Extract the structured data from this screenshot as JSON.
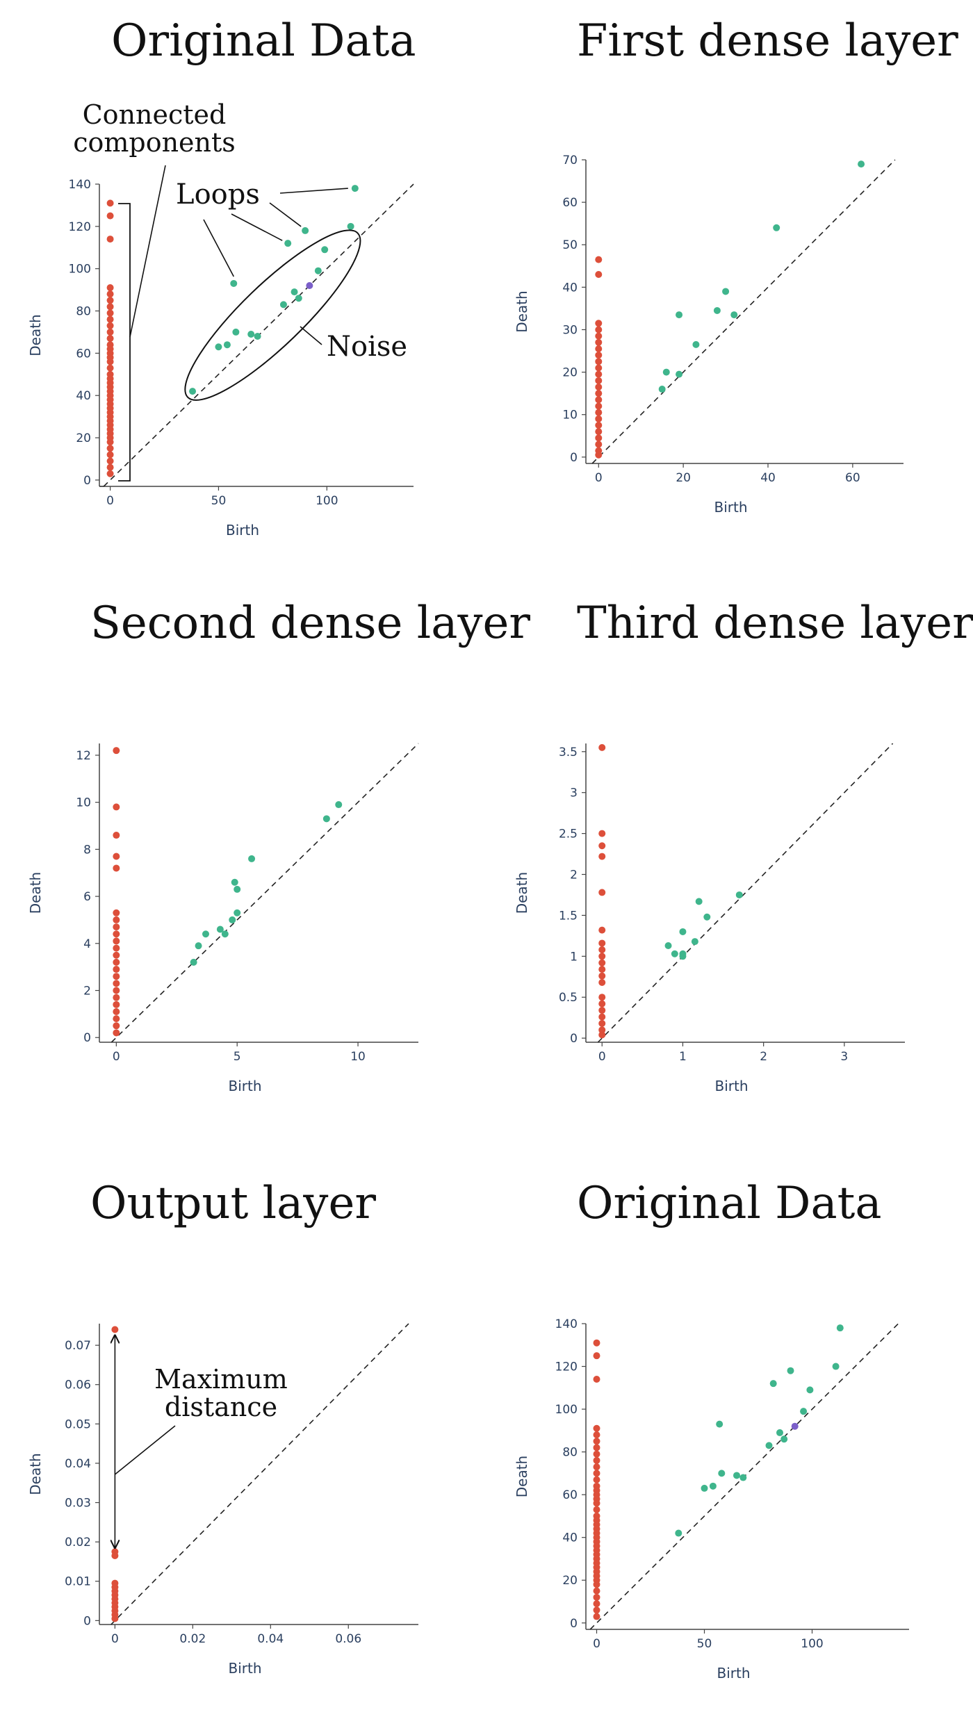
{
  "colors": {
    "h0": "#dd4f3a",
    "h1": "#3fb58c",
    "h2": "#7b5fc9",
    "axis": "#2a3f5f",
    "diag": "#222222"
  },
  "chart_data": [
    {
      "type": "scatter",
      "title": "Original Data",
      "xlabel": "Birth",
      "ylabel": "Death",
      "xlim": [
        -5,
        140
      ],
      "ylim": [
        -3,
        140
      ],
      "xticks": [
        0,
        50,
        100
      ],
      "yticks": [
        0,
        20,
        40,
        60,
        80,
        100,
        120,
        140
      ],
      "series": [
        {
          "values": [
            [
              0,
              131
            ],
            [
              0,
              125
            ],
            [
              0,
              114
            ],
            [
              0,
              91
            ],
            [
              0,
              88
            ],
            [
              0,
              85
            ],
            [
              0,
              82
            ],
            [
              0,
              79
            ],
            [
              0,
              76
            ],
            [
              0,
              73
            ],
            [
              0,
              70
            ],
            [
              0,
              67
            ],
            [
              0,
              64
            ],
            [
              0,
              62
            ],
            [
              0,
              60
            ],
            [
              0,
              58
            ],
            [
              0,
              56
            ],
            [
              0,
              53
            ],
            [
              0,
              50
            ],
            [
              0,
              48
            ],
            [
              0,
              46
            ],
            [
              0,
              44
            ],
            [
              0,
              42
            ],
            [
              0,
              40
            ],
            [
              0,
              38
            ],
            [
              0,
              36
            ],
            [
              0,
              34
            ],
            [
              0,
              32
            ],
            [
              0,
              30
            ],
            [
              0,
              28
            ],
            [
              0,
              26
            ],
            [
              0,
              24
            ],
            [
              0,
              22
            ],
            [
              0,
              20
            ],
            [
              0,
              18
            ],
            [
              0,
              15
            ],
            [
              0,
              12
            ],
            [
              0,
              9
            ],
            [
              0,
              6
            ],
            [
              0,
              3
            ]
          ]
        },
        {
          "values": [
            [
              113,
              138
            ],
            [
              111,
              120
            ],
            [
              90,
              118
            ],
            [
              82,
              112
            ],
            [
              57,
              93
            ],
            [
              99,
              109
            ],
            [
              96,
              99
            ],
            [
              85,
              89
            ],
            [
              87,
              86
            ],
            [
              80,
              83
            ],
            [
              58,
              70
            ],
            [
              65,
              69
            ],
            [
              68,
              68
            ],
            [
              50,
              63
            ],
            [
              54,
              64
            ],
            [
              38,
              42
            ]
          ]
        },
        {
          "values": [
            [
              92,
              92
            ]
          ]
        }
      ],
      "annotations": [
        {
          "lines": [
            "Connected",
            "components"
          ]
        },
        {
          "lines": [
            "Loops"
          ]
        },
        {
          "lines": [
            "Noise"
          ]
        }
      ]
    },
    {
      "type": "scatter",
      "title": "First dense layer",
      "xlabel": "Birth",
      "ylabel": "Death",
      "xlim": [
        -3,
        72
      ],
      "ylim": [
        -1.5,
        70
      ],
      "xticks": [
        0,
        20,
        40,
        60
      ],
      "yticks": [
        0,
        10,
        20,
        30,
        40,
        50,
        60,
        70
      ],
      "series": [
        {
          "values": [
            [
              0,
              46.5
            ],
            [
              0,
              43
            ],
            [
              0,
              31.5
            ],
            [
              0,
              30
            ],
            [
              0,
              28.5
            ],
            [
              0,
              27
            ],
            [
              0,
              25.5
            ],
            [
              0,
              24
            ],
            [
              0,
              22.5
            ],
            [
              0,
              21
            ],
            [
              0,
              19.5
            ],
            [
              0,
              18
            ],
            [
              0,
              16.5
            ],
            [
              0,
              15
            ],
            [
              0,
              13.5
            ],
            [
              0,
              12
            ],
            [
              0,
              10.5
            ],
            [
              0,
              9
            ],
            [
              0,
              7.5
            ],
            [
              0,
              6
            ],
            [
              0,
              4.5
            ],
            [
              0,
              3
            ],
            [
              0,
              1.5
            ],
            [
              0,
              0.5
            ]
          ]
        },
        {
          "values": [
            [
              62,
              69
            ],
            [
              42,
              54
            ],
            [
              30,
              39
            ],
            [
              28,
              34.5
            ],
            [
              32,
              33.5
            ],
            [
              19,
              33.5
            ],
            [
              23,
              26.5
            ],
            [
              16,
              20
            ],
            [
              15,
              16
            ],
            [
              19,
              19.5
            ]
          ]
        }
      ]
    },
    {
      "type": "scatter",
      "title": "Second dense layer",
      "xlabel": "Birth",
      "ylabel": "Death",
      "xlim": [
        -0.7,
        12.5
      ],
      "ylim": [
        -0.2,
        12.5
      ],
      "xticks": [
        0,
        5,
        10
      ],
      "yticks": [
        0,
        2,
        4,
        6,
        8,
        10,
        12
      ],
      "series": [
        {
          "values": [
            [
              0,
              12.2
            ],
            [
              0,
              9.8
            ],
            [
              0,
              8.6
            ],
            [
              0,
              7.7
            ],
            [
              0,
              7.2
            ],
            [
              0,
              5.3
            ],
            [
              0,
              5.0
            ],
            [
              0,
              4.7
            ],
            [
              0,
              4.4
            ],
            [
              0,
              4.1
            ],
            [
              0,
              3.8
            ],
            [
              0,
              3.5
            ],
            [
              0,
              3.2
            ],
            [
              0,
              2.9
            ],
            [
              0,
              2.6
            ],
            [
              0,
              2.3
            ],
            [
              0,
              2.0
            ],
            [
              0,
              1.7
            ],
            [
              0,
              1.4
            ],
            [
              0,
              1.1
            ],
            [
              0,
              0.8
            ],
            [
              0,
              0.5
            ],
            [
              0,
              0.2
            ]
          ]
        },
        {
          "values": [
            [
              9.2,
              9.9
            ],
            [
              8.7,
              9.3
            ],
            [
              5.6,
              7.6
            ],
            [
              4.9,
              6.6
            ],
            [
              5.0,
              6.3
            ],
            [
              5.0,
              5.3
            ],
            [
              4.8,
              5.0
            ],
            [
              4.3,
              4.6
            ],
            [
              4.5,
              4.4
            ],
            [
              3.7,
              4.4
            ],
            [
              3.4,
              3.9
            ],
            [
              3.2,
              3.2
            ]
          ]
        }
      ]
    },
    {
      "type": "scatter",
      "title": "Third dense layer",
      "xlabel": "Birth",
      "ylabel": "Death",
      "xlim": [
        -0.2,
        3.75
      ],
      "ylim": [
        -0.05,
        3.6
      ],
      "xticks": [
        0,
        1,
        2,
        3
      ],
      "yticks": [
        0,
        0.5,
        1,
        1.5,
        2,
        2.5,
        3,
        3.5
      ],
      "series": [
        {
          "values": [
            [
              0,
              3.55
            ],
            [
              0,
              2.5
            ],
            [
              0,
              2.35
            ],
            [
              0,
              2.22
            ],
            [
              0,
              1.78
            ],
            [
              0,
              1.32
            ],
            [
              0,
              1.16
            ],
            [
              0,
              1.08
            ],
            [
              0,
              1.0
            ],
            [
              0,
              0.92
            ],
            [
              0,
              0.84
            ],
            [
              0,
              0.76
            ],
            [
              0,
              0.68
            ],
            [
              0,
              0.5
            ],
            [
              0,
              0.42
            ],
            [
              0,
              0.34
            ],
            [
              0,
              0.26
            ],
            [
              0,
              0.18
            ],
            [
              0,
              0.1
            ],
            [
              0,
              0.04
            ]
          ]
        },
        {
          "values": [
            [
              1.7,
              1.75
            ],
            [
              1.2,
              1.67
            ],
            [
              1.3,
              1.48
            ],
            [
              1.0,
              1.3
            ],
            [
              1.15,
              1.18
            ],
            [
              0.82,
              1.13
            ],
            [
              0.9,
              1.03
            ],
            [
              1.0,
              1.03
            ],
            [
              1.0,
              1.0
            ]
          ]
        }
      ]
    },
    {
      "type": "scatter",
      "title": "Output  layer",
      "xlabel": "Birth",
      "ylabel": "Death",
      "xlim": [
        -0.004,
        0.078
      ],
      "ylim": [
        -0.001,
        0.0755
      ],
      "xticks": [
        0,
        0.02,
        0.04,
        0.06
      ],
      "yticks": [
        0,
        0.01,
        0.02,
        0.03,
        0.04,
        0.05,
        0.06,
        0.07
      ],
      "series": [
        {
          "values": [
            [
              0,
              0.074
            ],
            [
              0,
              0.0175
            ],
            [
              0,
              0.0165
            ],
            [
              0,
              0.0095
            ],
            [
              0,
              0.0085
            ],
            [
              0,
              0.0075
            ],
            [
              0,
              0.0065
            ],
            [
              0,
              0.0055
            ],
            [
              0,
              0.0045
            ],
            [
              0,
              0.0035
            ],
            [
              0,
              0.0025
            ],
            [
              0,
              0.0015
            ],
            [
              0,
              0.0005
            ]
          ]
        }
      ],
      "annotations": [
        {
          "lines": [
            "Maximum",
            "distance"
          ]
        }
      ]
    },
    {
      "type": "scatter",
      "title": "Original Data",
      "xlabel": "Birth",
      "ylabel": "Death",
      "xlim": [
        -5,
        145
      ],
      "ylim": [
        -3,
        140
      ],
      "xticks": [
        0,
        50,
        100
      ],
      "yticks": [
        0,
        20,
        40,
        60,
        80,
        100,
        120,
        140
      ],
      "series": [
        {
          "values": [
            [
              0,
              131
            ],
            [
              0,
              125
            ],
            [
              0,
              114
            ],
            [
              0,
              91
            ],
            [
              0,
              88
            ],
            [
              0,
              85
            ],
            [
              0,
              82
            ],
            [
              0,
              79
            ],
            [
              0,
              76
            ],
            [
              0,
              73
            ],
            [
              0,
              70
            ],
            [
              0,
              67
            ],
            [
              0,
              64
            ],
            [
              0,
              62
            ],
            [
              0,
              60
            ],
            [
              0,
              58
            ],
            [
              0,
              56
            ],
            [
              0,
              53
            ],
            [
              0,
              50
            ],
            [
              0,
              48
            ],
            [
              0,
              46
            ],
            [
              0,
              44
            ],
            [
              0,
              42
            ],
            [
              0,
              40
            ],
            [
              0,
              38
            ],
            [
              0,
              36
            ],
            [
              0,
              34
            ],
            [
              0,
              32
            ],
            [
              0,
              30
            ],
            [
              0,
              28
            ],
            [
              0,
              26
            ],
            [
              0,
              24
            ],
            [
              0,
              22
            ],
            [
              0,
              20
            ],
            [
              0,
              18
            ],
            [
              0,
              15
            ],
            [
              0,
              12
            ],
            [
              0,
              9
            ],
            [
              0,
              6
            ],
            [
              0,
              3
            ]
          ]
        },
        {
          "values": [
            [
              113,
              138
            ],
            [
              111,
              120
            ],
            [
              90,
              118
            ],
            [
              82,
              112
            ],
            [
              57,
              93
            ],
            [
              99,
              109
            ],
            [
              96,
              99
            ],
            [
              85,
              89
            ],
            [
              87,
              86
            ],
            [
              80,
              83
            ],
            [
              58,
              70
            ],
            [
              65,
              69
            ],
            [
              68,
              68
            ],
            [
              50,
              63
            ],
            [
              54,
              64
            ],
            [
              38,
              42
            ]
          ]
        },
        {
          "values": [
            [
              92,
              92
            ]
          ]
        }
      ]
    }
  ]
}
